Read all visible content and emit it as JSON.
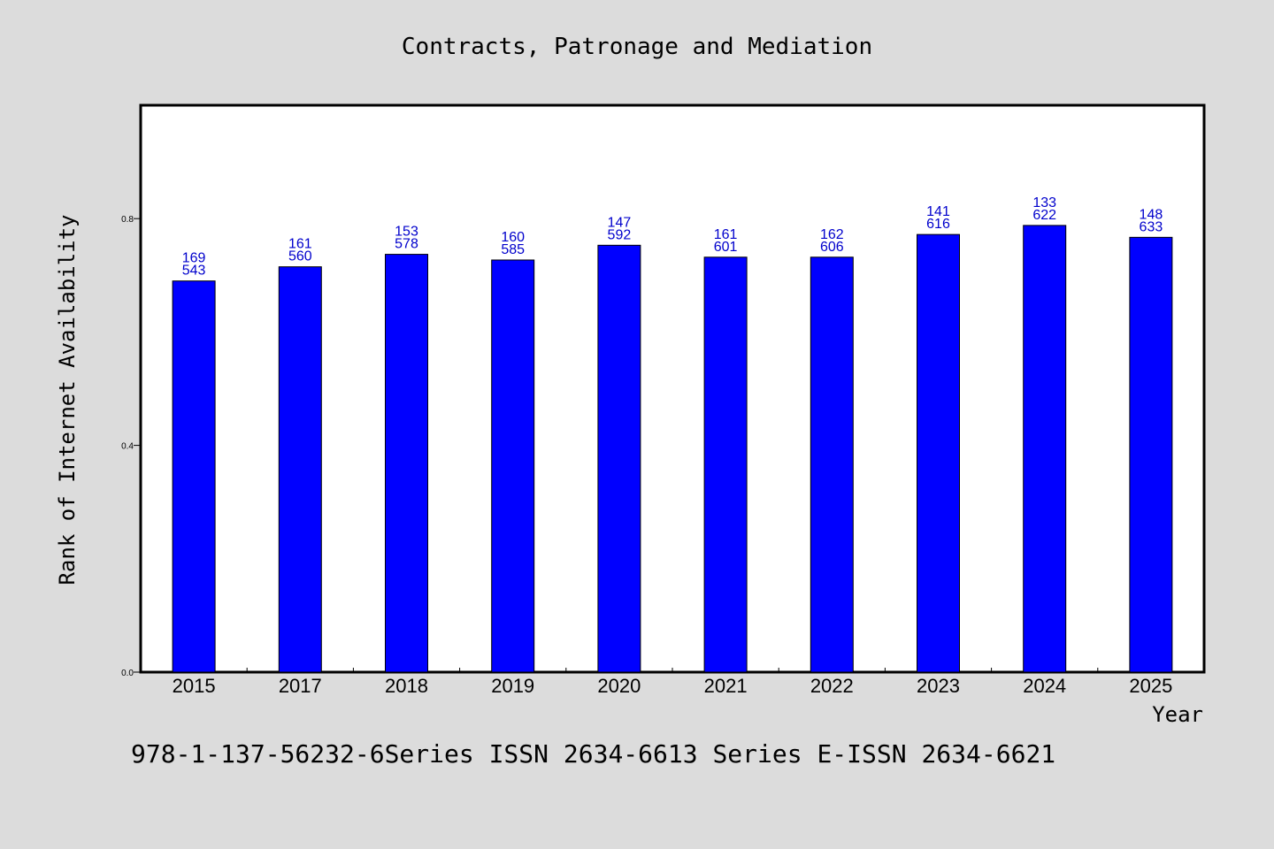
{
  "chart_data": {
    "type": "bar",
    "title": "Contracts, Patronage and Mediation",
    "xlabel": "Year",
    "ylabel": "Rank of Internet Availability",
    "categories": [
      "2015",
      "2017",
      "2018",
      "2019",
      "2020",
      "2021",
      "2022",
      "2023",
      "2024",
      "2025"
    ],
    "values": [
      0.69,
      0.715,
      0.737,
      0.727,
      0.753,
      0.732,
      0.732,
      0.772,
      0.788,
      0.767
    ],
    "data_labels_top": [
      "169",
      "161",
      "153",
      "160",
      "147",
      "161",
      "162",
      "141",
      "133",
      "148"
    ],
    "data_labels_bottom": [
      "543",
      "560",
      "578",
      "585",
      "592",
      "601",
      "606",
      "616",
      "622",
      "633"
    ],
    "ylim": [
      0,
      1.0
    ],
    "yticks": [
      0.0,
      0.4,
      0.8
    ],
    "ytick_labels": [
      "0.0",
      "0.4",
      "0.8"
    ],
    "grid": false,
    "bar_color": "#0000ff",
    "label_color": "#0000cc"
  },
  "footer": {
    "text": "978-1-137-56232-6Series ISSN 2634-6613 Series E-ISSN 2634-6621"
  }
}
